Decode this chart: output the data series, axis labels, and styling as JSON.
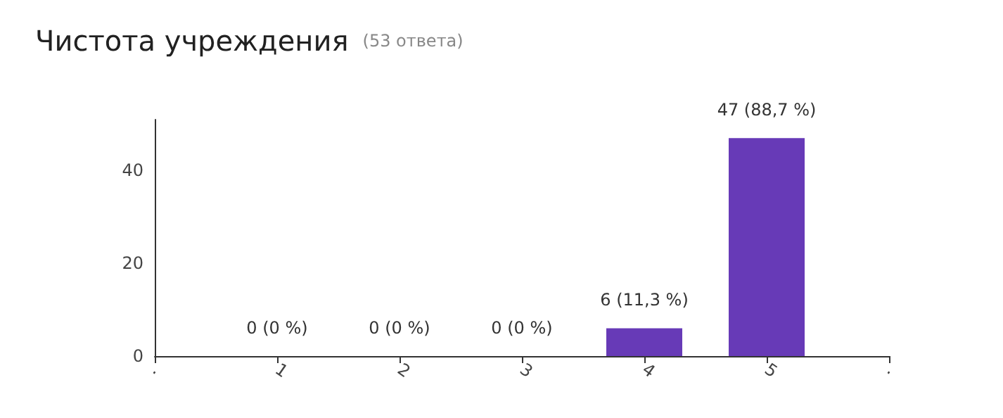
{
  "chart_data": {
    "type": "bar",
    "title": "Чистота учреждения",
    "subtitle": "(53 ответа)",
    "x": [
      1,
      2,
      3,
      4,
      5
    ],
    "values": [
      0,
      0,
      0,
      6,
      47
    ],
    "value_labels": [
      "0 (0 %)",
      "0 (0 %)",
      "0 (0 %)",
      "6 (11,3 %)",
      "47 (88,7 %)"
    ],
    "color": "#673ab7",
    "xlim": [
      0,
      6
    ],
    "xticks": [
      {
        "value": 0,
        "label": "."
      },
      1,
      2,
      3,
      4,
      5,
      {
        "value": 6,
        "label": "."
      }
    ],
    "ylim": [
      0,
      51
    ],
    "yticks": [
      0,
      20,
      40
    ],
    "grid": false
  }
}
